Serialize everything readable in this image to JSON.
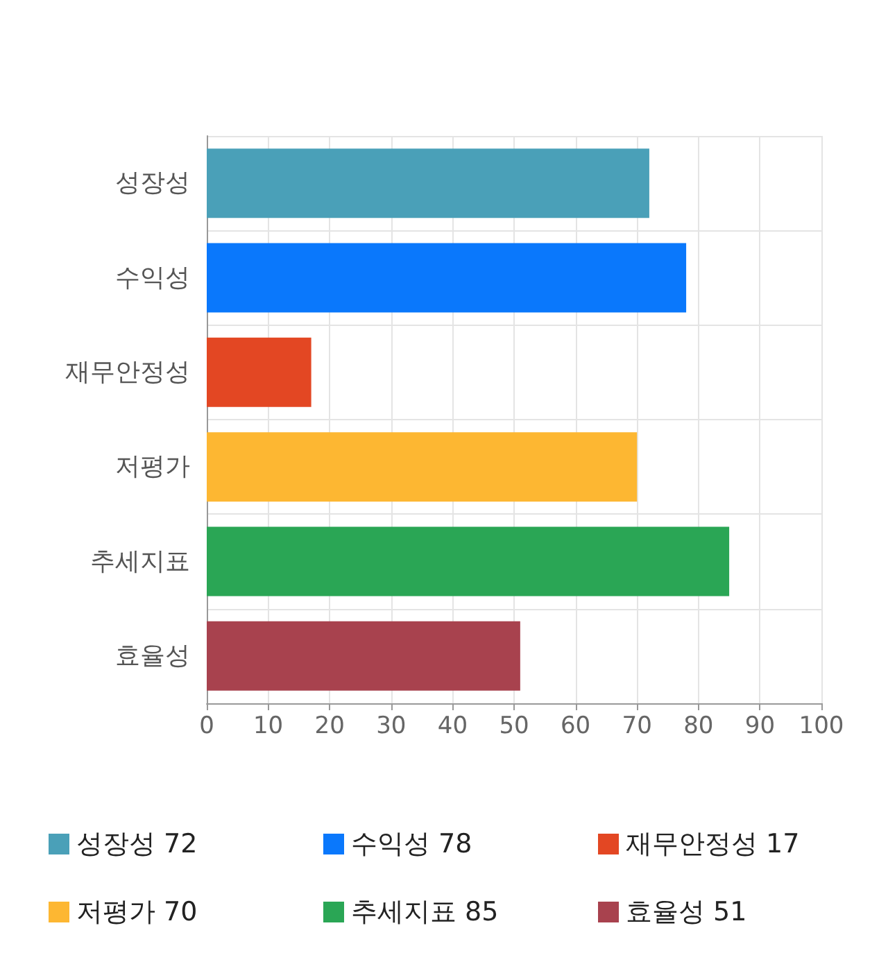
{
  "chart_data": {
    "type": "bar",
    "orientation": "horizontal",
    "categories": [
      "성장성",
      "수익성",
      "재무안정성",
      "저평가",
      "추세지표",
      "효율성"
    ],
    "series": [
      {
        "name": "성장성 72",
        "color": "#4aa0b8",
        "values": [
          72,
          null,
          null,
          null,
          null,
          null
        ]
      },
      {
        "name": "수익성 78",
        "color": "#0a78fc",
        "values": [
          null,
          78,
          null,
          null,
          null,
          null
        ]
      },
      {
        "name": "재무안정성 17",
        "color": "#e34723",
        "values": [
          null,
          null,
          17,
          null,
          null,
          null
        ]
      },
      {
        "name": "저평가 70",
        "color": "#fdb732",
        "values": [
          null,
          null,
          null,
          70,
          null,
          null
        ]
      },
      {
        "name": "추세지표 85",
        "color": "#2aa655",
        "values": [
          null,
          null,
          null,
          null,
          85,
          null
        ]
      },
      {
        "name": "효율성 51",
        "color": "#a8424e",
        "values": [
          null,
          null,
          null,
          null,
          null,
          51
        ]
      }
    ],
    "xlim": [
      0,
      100
    ],
    "xticks": [
      0,
      10,
      20,
      30,
      40,
      50,
      60,
      70,
      80,
      90,
      100
    ],
    "grid": true,
    "legend": "bottom"
  }
}
